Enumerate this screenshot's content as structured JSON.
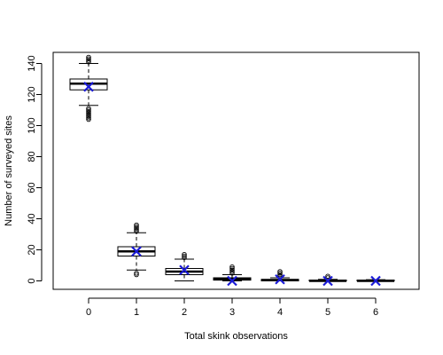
{
  "chart_data": {
    "type": "box",
    "title": "",
    "xlabel": "Total skink observations",
    "ylabel": "Number of surveyed sites",
    "categories": [
      "0",
      "1",
      "2",
      "3",
      "4",
      "5",
      "6"
    ],
    "ylim": [
      -6,
      147
    ],
    "yticks": [
      0,
      20,
      40,
      60,
      80,
      100,
      120,
      140
    ],
    "grid": false,
    "mean_marker": "x",
    "colors": {
      "box": "#000000",
      "mean": "#1a1ad6"
    },
    "boxes": [
      {
        "category": "0",
        "whisker_low": 113,
        "q1": 123,
        "median": 127,
        "q3": 130,
        "whisker_high": 140,
        "mean": 125,
        "outliers_low": [
          104,
          105,
          106,
          107,
          108,
          109,
          110,
          111
        ],
        "outliers_high": [
          141,
          142,
          143,
          144
        ]
      },
      {
        "category": "1",
        "whisker_low": 7,
        "q1": 16,
        "median": 19,
        "q3": 22,
        "whisker_high": 31,
        "mean": 19,
        "outliers_low": [
          4,
          5
        ],
        "outliers_high": [
          32,
          33,
          34,
          35,
          36
        ]
      },
      {
        "category": "2",
        "whisker_low": 0,
        "q1": 4,
        "median": 6,
        "q3": 8,
        "whisker_high": 14,
        "mean": 7,
        "outliers_low": [],
        "outliers_high": [
          15,
          16,
          17
        ]
      },
      {
        "category": "3",
        "whisker_low": 0,
        "q1": 0.5,
        "median": 1,
        "q3": 2,
        "whisker_high": 4,
        "mean": 0,
        "outliers_low": [],
        "outliers_high": [
          5,
          6,
          7,
          8,
          9
        ]
      },
      {
        "category": "4",
        "whisker_low": 0,
        "q1": 0,
        "median": 0.5,
        "q3": 1,
        "whisker_high": 2,
        "mean": 1,
        "outliers_low": [],
        "outliers_high": [
          3,
          4,
          5,
          6
        ]
      },
      {
        "category": "5",
        "whisker_low": 0,
        "q1": 0,
        "median": 0,
        "q3": 0.5,
        "whisker_high": 1,
        "mean": 0,
        "outliers_low": [],
        "outliers_high": [
          2,
          3
        ]
      },
      {
        "category": "6",
        "whisker_low": 0,
        "q1": 0,
        "median": 0,
        "q3": 0.5,
        "whisker_high": 0.8,
        "mean": 0,
        "outliers_low": [],
        "outliers_high": []
      }
    ]
  }
}
